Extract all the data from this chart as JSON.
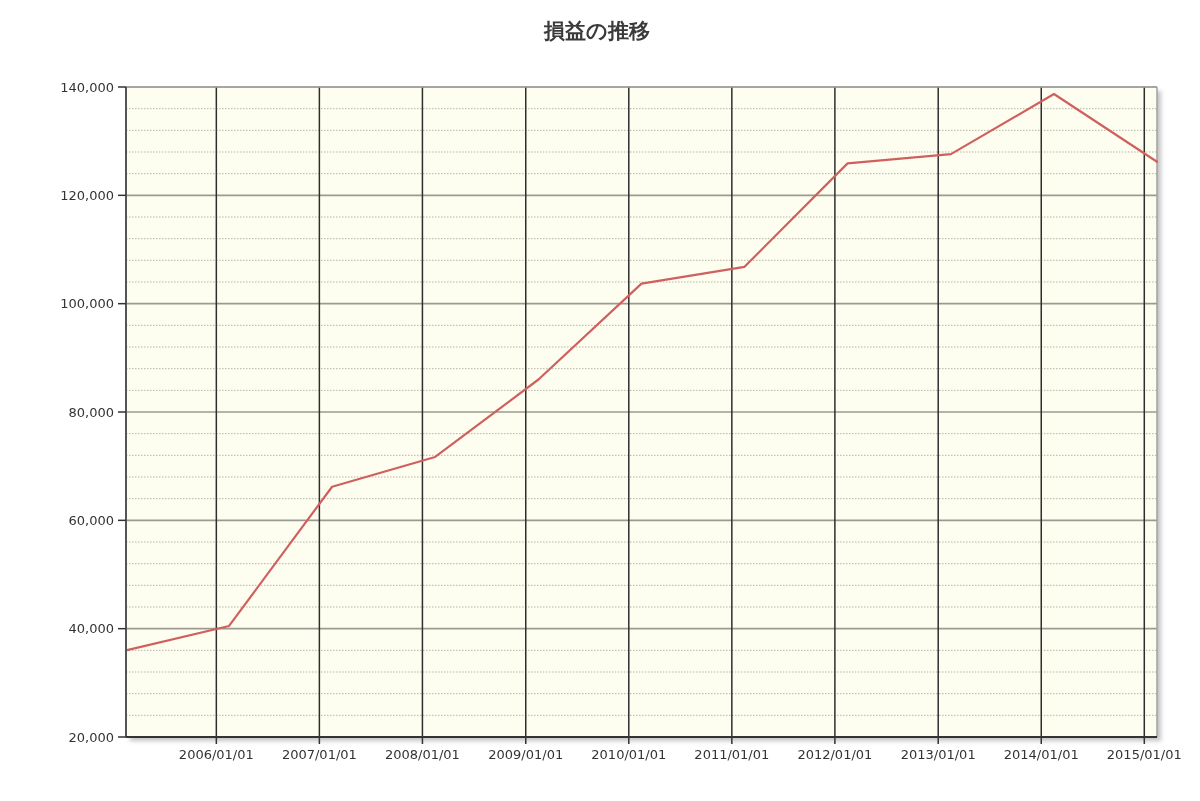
{
  "chart_data": {
    "type": "line",
    "title": "損益の推移",
    "x": [
      "2005-02-15",
      "2006-02-15",
      "2007-02-15",
      "2008-02-15",
      "2009-02-15",
      "2010-02-15",
      "2011-02-15",
      "2012-02-15",
      "2013-02-15",
      "2014-02-15",
      "2015-02-15"
    ],
    "series": [
      {
        "color": "#d0605e",
        "values": [
          36000,
          40500,
          66200,
          71700,
          86000,
          103700,
          106800,
          125900,
          127600,
          138700,
          126200
        ]
      }
    ],
    "xlim": [
      "2005-02-15",
      "2015-02-15"
    ],
    "xticks": [
      {
        "value": "2006-01-01",
        "label": "2006/01/01"
      },
      {
        "value": "2007-01-01",
        "label": "2007/01/01"
      },
      {
        "value": "2008-01-01",
        "label": "2008/01/01"
      },
      {
        "value": "2009-01-01",
        "label": "2009/01/01"
      },
      {
        "value": "2010-01-01",
        "label": "2010/01/01"
      },
      {
        "value": "2011-01-01",
        "label": "2011/01/01"
      },
      {
        "value": "2012-01-01",
        "label": "2012/01/01"
      },
      {
        "value": "2013-01-01",
        "label": "2013/01/01"
      },
      {
        "value": "2014-01-01",
        "label": "2014/01/01"
      },
      {
        "value": "2015-01-01",
        "label": "2015/01/01"
      }
    ],
    "ylim": [
      20000,
      140000
    ],
    "yticks": [
      {
        "value": 20000,
        "label": "20,000"
      },
      {
        "value": 24000,
        "label": null
      },
      {
        "value": 28000,
        "label": null
      },
      {
        "value": 32000,
        "label": null
      },
      {
        "value": 36000,
        "label": null
      },
      {
        "value": 40000,
        "label": "40,000"
      },
      {
        "value": 44000,
        "label": null
      },
      {
        "value": 48000,
        "label": null
      },
      {
        "value": 52000,
        "label": null
      },
      {
        "value": 56000,
        "label": null
      },
      {
        "value": 60000,
        "label": "60,000"
      },
      {
        "value": 64000,
        "label": null
      },
      {
        "value": 68000,
        "label": null
      },
      {
        "value": 72000,
        "label": null
      },
      {
        "value": 76000,
        "label": null
      },
      {
        "value": 80000,
        "label": "80,000"
      },
      {
        "value": 84000,
        "label": null
      },
      {
        "value": 88000,
        "label": null
      },
      {
        "value": 92000,
        "label": null
      },
      {
        "value": 96000,
        "label": null
      },
      {
        "value": 100000,
        "label": "100,000"
      },
      {
        "value": 104000,
        "label": null
      },
      {
        "value": 108000,
        "label": null
      },
      {
        "value": 112000,
        "label": null
      },
      {
        "value": 116000,
        "label": null
      },
      {
        "value": 120000,
        "label": "120,000"
      },
      {
        "value": 124000,
        "label": null
      },
      {
        "value": 128000,
        "label": null
      },
      {
        "value": 132000,
        "label": null
      },
      {
        "value": 136000,
        "label": null
      },
      {
        "value": 140000,
        "label": "140,000"
      }
    ],
    "grid": true
  }
}
